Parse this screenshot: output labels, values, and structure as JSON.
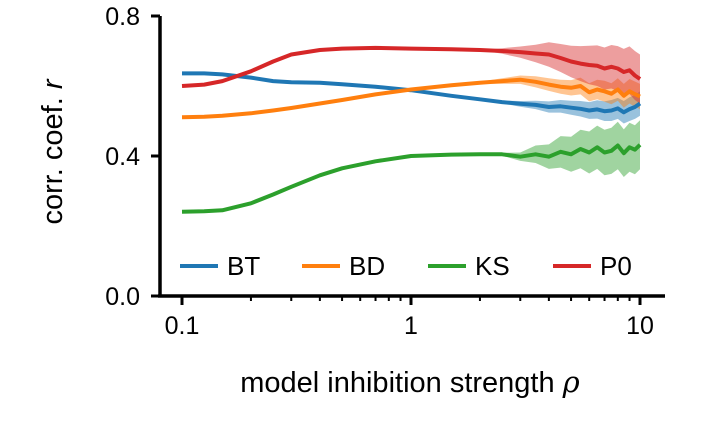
{
  "chart_data": {
    "type": "line",
    "xlabel": "model inhibition strength",
    "xlabel_symbol": "ρ",
    "ylabel": "corr. coef.",
    "ylabel_symbol": "r",
    "x_scale": "log",
    "xlim": [
      0.09,
      13
    ],
    "ylim": [
      0.0,
      0.8
    ],
    "xticks": [
      0.1,
      1,
      10
    ],
    "xtick_labels": [
      "0.1",
      "1",
      "10"
    ],
    "yticks": [
      0.0,
      0.4,
      0.8
    ],
    "ytick_labels": [
      "0.0",
      "0.4",
      "0.8"
    ],
    "grid": false,
    "legend_position": "bottom, single row inside axes",
    "x": [
      0.1,
      0.125,
      0.15,
      0.2,
      0.25,
      0.3,
      0.4,
      0.5,
      0.7,
      1.0,
      1.5,
      2.0,
      2.5,
      3.0,
      3.5,
      4.0,
      4.5,
      5.0,
      5.5,
      6.0,
      6.5,
      7.0,
      7.5,
      8.0,
      8.5,
      9.0,
      9.5,
      10.0
    ],
    "series": [
      {
        "name": "BT",
        "color": "#1f77b4",
        "values": [
          0.636,
          0.636,
          0.633,
          0.624,
          0.614,
          0.611,
          0.609,
          0.605,
          0.598,
          0.588,
          0.572,
          0.562,
          0.554,
          0.549,
          0.546,
          0.54,
          0.542,
          0.538,
          0.535,
          0.53,
          0.533,
          0.528,
          0.53,
          0.536,
          0.525,
          0.534,
          0.54,
          0.55
        ],
        "band": [
          0.0,
          0.0,
          0.0,
          0.0,
          0.0,
          0.0,
          0.0,
          0.0,
          0.0,
          0.0,
          0.0,
          0.0,
          0.004,
          0.008,
          0.012,
          0.016,
          0.018,
          0.02,
          0.022,
          0.024,
          0.026,
          0.028,
          0.03,
          0.03,
          0.032,
          0.034,
          0.034,
          0.035
        ]
      },
      {
        "name": "BD",
        "color": "#ff7f0e",
        "values": [
          0.511,
          0.512,
          0.515,
          0.522,
          0.53,
          0.537,
          0.55,
          0.56,
          0.576,
          0.59,
          0.602,
          0.609,
          0.614,
          0.618,
          0.612,
          0.604,
          0.598,
          0.595,
          0.6,
          0.582,
          0.59,
          0.585,
          0.578,
          0.59,
          0.572,
          0.585,
          0.577,
          0.57
        ],
        "band": [
          0.0,
          0.0,
          0.0,
          0.0,
          0.0,
          0.0,
          0.0,
          0.0,
          0.0,
          0.0,
          0.0,
          0.003,
          0.008,
          0.012,
          0.016,
          0.018,
          0.02,
          0.022,
          0.024,
          0.026,
          0.028,
          0.03,
          0.03,
          0.032,
          0.034,
          0.035,
          0.036,
          0.036
        ]
      },
      {
        "name": "KS",
        "color": "#2ca02c",
        "values": [
          0.241,
          0.242,
          0.245,
          0.265,
          0.29,
          0.312,
          0.345,
          0.365,
          0.385,
          0.4,
          0.404,
          0.405,
          0.405,
          0.398,
          0.405,
          0.398,
          0.412,
          0.405,
          0.42,
          0.41,
          0.425,
          0.41,
          0.415,
          0.43,
          0.408,
          0.425,
          0.418,
          0.432
        ],
        "band": [
          0.0,
          0.0,
          0.0,
          0.0,
          0.0,
          0.0,
          0.0,
          0.0,
          0.0,
          0.0,
          0.0,
          0.0,
          0.004,
          0.012,
          0.025,
          0.035,
          0.045,
          0.05,
          0.055,
          0.06,
          0.062,
          0.065,
          0.066,
          0.068,
          0.068,
          0.07,
          0.07,
          0.07
        ]
      },
      {
        "name": "P0",
        "color": "#d62728",
        "values": [
          0.6,
          0.604,
          0.614,
          0.642,
          0.67,
          0.69,
          0.703,
          0.707,
          0.709,
          0.707,
          0.705,
          0.703,
          0.7,
          0.697,
          0.693,
          0.69,
          0.68,
          0.67,
          0.664,
          0.66,
          0.658,
          0.65,
          0.655,
          0.65,
          0.64,
          0.645,
          0.63,
          0.62
        ],
        "band": [
          0.0,
          0.0,
          0.0,
          0.0,
          0.0,
          0.0,
          0.0,
          0.0,
          0.0,
          0.0,
          0.0,
          0.0,
          0.008,
          0.016,
          0.025,
          0.035,
          0.04,
          0.045,
          0.05,
          0.055,
          0.058,
          0.06,
          0.062,
          0.064,
          0.066,
          0.068,
          0.07,
          0.07
        ]
      }
    ]
  }
}
